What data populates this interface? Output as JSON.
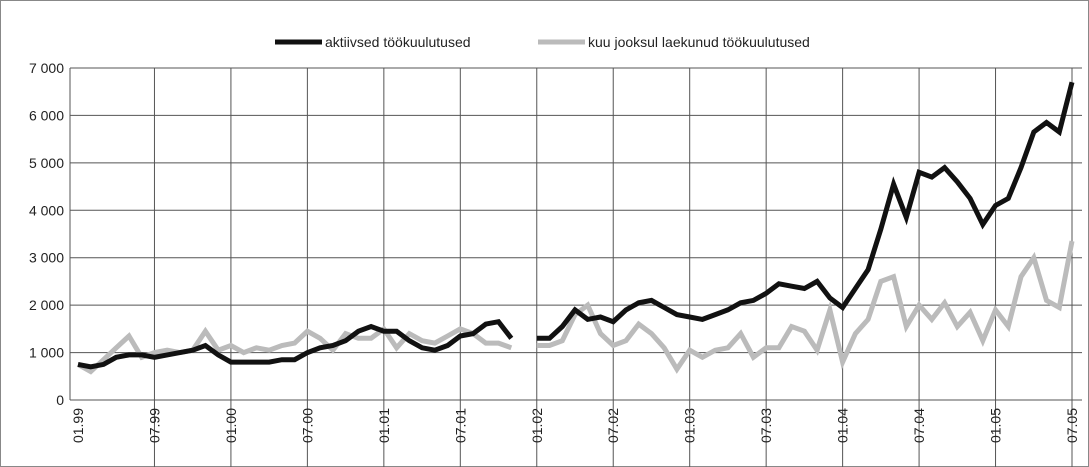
{
  "chart_data": {
    "type": "line",
    "categories": [
      "01.99",
      null,
      null,
      null,
      null,
      null,
      "07.99",
      null,
      null,
      null,
      null,
      null,
      "01.00",
      null,
      null,
      null,
      null,
      null,
      "07.00",
      null,
      null,
      null,
      null,
      null,
      "01.01",
      null,
      null,
      null,
      null,
      null,
      "07.01",
      null,
      null,
      null,
      null,
      null,
      "01.02",
      null,
      null,
      null,
      null,
      null,
      "07.02",
      null,
      null,
      null,
      null,
      null,
      "01.03",
      null,
      null,
      null,
      null,
      null,
      "07.03",
      null,
      null,
      null,
      null,
      null,
      "01.04",
      null,
      null,
      null,
      null,
      null,
      "07.04",
      null,
      null,
      null,
      null,
      null,
      "01.05",
      null,
      null,
      null,
      null,
      null,
      "07.05"
    ],
    "series": [
      {
        "name": "aktiivsed töökuulutused",
        "color": "#111111",
        "values": [
          750,
          700,
          750,
          900,
          950,
          950,
          900,
          950,
          1000,
          1050,
          1150,
          950,
          800,
          800,
          800,
          800,
          850,
          850,
          1000,
          1100,
          1150,
          1250,
          1450,
          1550,
          1450,
          1450,
          1250,
          1100,
          1050,
          1150,
          1350,
          1400,
          1600,
          1650,
          1300,
          null,
          1300,
          1300,
          1550,
          1900,
          1700,
          1750,
          1650,
          1900,
          2050,
          2100,
          1950,
          1800,
          1750,
          1700,
          1800,
          1900,
          2050,
          2100,
          2250,
          2450,
          2400,
          2350,
          2500,
          2150,
          1950,
          2350,
          2750,
          3600,
          4550,
          3850,
          4800,
          4700,
          4900,
          4600,
          4250,
          3700,
          4100,
          4250,
          4900,
          5650,
          5850,
          5650,
          6700
        ]
      },
      {
        "name": "kuu jooksul laekunud töökuulutused",
        "color": "#bbbbbb",
        "values": [
          750,
          600,
          850,
          1100,
          1350,
          900,
          1000,
          1050,
          1000,
          1050,
          1450,
          1050,
          1150,
          1000,
          1100,
          1050,
          1150,
          1200,
          1450,
          1300,
          1050,
          1400,
          1300,
          1300,
          1500,
          1100,
          1400,
          1250,
          1200,
          1350,
          1500,
          1400,
          1200,
          1200,
          1100,
          null,
          1150,
          1150,
          1250,
          1800,
          2000,
          1400,
          1150,
          1250,
          1600,
          1400,
          1100,
          650,
          1050,
          900,
          1050,
          1100,
          1400,
          900,
          1100,
          1100,
          1550,
          1450,
          1050,
          1900,
          800,
          1400,
          1700,
          2500,
          2600,
          1550,
          2000,
          1700,
          2050,
          1550,
          1850,
          1250,
          1900,
          1550,
          2600,
          3000,
          2100,
          1950,
          3350
        ]
      }
    ],
    "ylim": [
      0,
      7000
    ],
    "yticks": [
      0,
      {
        "value": 1000,
        "label": "1 000"
      },
      {
        "value": 2000,
        "label": "2 000"
      },
      {
        "value": 3000,
        "label": "3 000"
      },
      {
        "value": 4000,
        "label": "4 000"
      },
      {
        "value": 5000,
        "label": "5 000"
      },
      {
        "value": 6000,
        "label": "6 000"
      },
      {
        "value": 7000,
        "label": "7 000"
      }
    ],
    "grid": true
  }
}
